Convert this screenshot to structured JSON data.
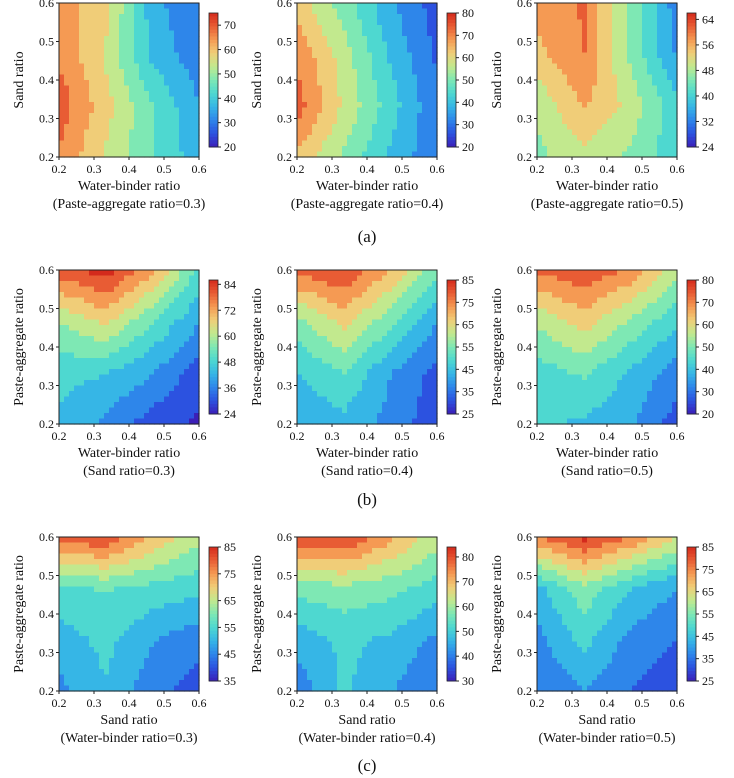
{
  "figure": {
    "row_labels": [
      "(a)",
      "(b)",
      "(c)"
    ]
  },
  "colormap": [
    "#3b1fb8",
    "#2c52e0",
    "#2e86ea",
    "#36b6e6",
    "#4ed8d0",
    "#7ee8b4",
    "#c2e98e",
    "#f0cd78",
    "#f59a53",
    "#e85c34",
    "#d42a1c"
  ],
  "chart_data": [
    {
      "type": "heatmap",
      "row": 0,
      "col": 0,
      "title": "",
      "xlabel": "Water-binder ratio",
      "ylabel": "Sand ratio",
      "subtitle": "(Paste-aggregate ratio=0.3)",
      "xlim": [
        0.2,
        0.6
      ],
      "ylim": [
        0.2,
        0.6
      ],
      "xticks": [
        "0.2",
        "0.3",
        "0.4",
        "0.5",
        "0.6"
      ],
      "yticks": [
        "0.2",
        "0.3",
        "0.4",
        "0.5",
        "0.6"
      ],
      "colorbar": {
        "min": 20,
        "max": 75,
        "ticks": [
          "20",
          "30",
          "40",
          "50",
          "60",
          "70"
        ]
      },
      "corners": [
        [
          64,
          58,
          36,
          28
        ],
        [
          66,
          55,
          38,
          30
        ],
        [
          70,
          58,
          45,
          34
        ],
        [
          66,
          55,
          45,
          36
        ]
      ]
    },
    {
      "type": "heatmap",
      "row": 0,
      "col": 1,
      "title": "",
      "xlabel": "Water-binder ratio",
      "ylabel": "Sand ratio",
      "subtitle": "(Paste-aggregate ratio=0.4)",
      "xlim": [
        0.2,
        0.6
      ],
      "ylim": [
        0.2,
        0.6
      ],
      "xticks": [
        "0.2",
        "0.3",
        "0.4",
        "0.5",
        "0.6"
      ],
      "yticks": [
        "0.2",
        "0.3",
        "0.4",
        "0.5",
        "0.6"
      ],
      "colorbar": {
        "min": 20,
        "max": 80,
        "ticks": [
          "20",
          "30",
          "40",
          "50",
          "60",
          "70",
          "80"
        ]
      },
      "corners": [
        [
          62,
          50,
          36,
          26
        ],
        [
          70,
          56,
          40,
          28
        ],
        [
          74,
          58,
          44,
          30
        ],
        [
          64,
          52,
          40,
          30
        ]
      ]
    },
    {
      "type": "heatmap",
      "row": 0,
      "col": 2,
      "title": "",
      "xlabel": "Water-binder ratio",
      "ylabel": "Sand ratio",
      "subtitle": "(Paste-aggregate ratio=0.5)",
      "xlim": [
        0.2,
        0.6
      ],
      "ylim": [
        0.2,
        0.6
      ],
      "xticks": [
        "0.2",
        "0.3",
        "0.4",
        "0.5",
        "0.6"
      ],
      "yticks": [
        "0.2",
        "0.3",
        "0.4",
        "0.5",
        "0.6"
      ],
      "colorbar": {
        "min": 24,
        "max": 66,
        "ticks": [
          "24",
          "32",
          "40",
          "48",
          "56",
          "64"
        ]
      },
      "corners": [
        [
          58,
          60,
          46,
          32
        ],
        [
          54,
          60,
          46,
          34
        ],
        [
          48,
          56,
          50,
          40
        ],
        [
          46,
          50,
          46,
          40
        ]
      ]
    },
    {
      "type": "heatmap",
      "row": 1,
      "col": 0,
      "title": "",
      "xlabel": "Water-binder ratio",
      "ylabel": "Paste-aggregate ratio",
      "subtitle": "(Sand ratio=0.3)",
      "xlim": [
        0.2,
        0.6
      ],
      "ylim": [
        0.2,
        0.6
      ],
      "xticks": [
        "0.2",
        "0.3",
        "0.4",
        "0.5",
        "0.6"
      ],
      "yticks": [
        "0.2",
        "0.3",
        "0.4",
        "0.5",
        "0.6"
      ],
      "colorbar": {
        "min": 24,
        "max": 86,
        "ticks": [
          "24",
          "36",
          "48",
          "60",
          "72",
          "84"
        ]
      },
      "corners": [
        [
          80,
          86,
          72,
          50
        ],
        [
          58,
          66,
          52,
          40
        ],
        [
          48,
          46,
          40,
          30
        ],
        [
          44,
          38,
          30,
          26
        ]
      ]
    },
    {
      "type": "heatmap",
      "row": 1,
      "col": 1,
      "title": "",
      "xlabel": "Water-binder ratio",
      "ylabel": "Paste-aggregate ratio",
      "subtitle": "(Sand ratio=0.4)",
      "xlim": [
        0.2,
        0.6
      ],
      "ylim": [
        0.2,
        0.6
      ],
      "xticks": [
        "0.2",
        "0.3",
        "0.4",
        "0.5",
        "0.6"
      ],
      "yticks": [
        "0.2",
        "0.3",
        "0.4",
        "0.5",
        "0.6"
      ],
      "colorbar": {
        "min": 25,
        "max": 85,
        "ticks": [
          "25",
          "35",
          "45",
          "55",
          "65",
          "75",
          "85"
        ]
      },
      "corners": [
        [
          78,
          82,
          70,
          54
        ],
        [
          56,
          66,
          54,
          40
        ],
        [
          46,
          52,
          40,
          32
        ],
        [
          40,
          44,
          38,
          30
        ]
      ]
    },
    {
      "type": "heatmap",
      "row": 1,
      "col": 2,
      "title": "",
      "xlabel": "Water-binder ratio",
      "ylabel": "Paste-aggregate ratio",
      "subtitle": "(Sand ratio=0.5)",
      "xlim": [
        0.2,
        0.6
      ],
      "ylim": [
        0.2,
        0.6
      ],
      "xticks": [
        "0.2",
        "0.3",
        "0.4",
        "0.5",
        "0.6"
      ],
      "yticks": [
        "0.2",
        "0.3",
        "0.4",
        "0.5",
        "0.6"
      ],
      "colorbar": {
        "min": 20,
        "max": 80,
        "ticks": [
          "20",
          "30",
          "40",
          "50",
          "60",
          "70",
          "80"
        ]
      },
      "corners": [
        [
          72,
          76,
          70,
          56
        ],
        [
          54,
          62,
          52,
          42
        ],
        [
          44,
          48,
          40,
          32
        ],
        [
          42,
          40,
          36,
          26
        ]
      ]
    },
    {
      "type": "heatmap",
      "row": 2,
      "col": 0,
      "title": "",
      "xlabel": "Sand ratio",
      "ylabel": "Paste-aggregate ratio",
      "subtitle": "(Water-binder ratio=0.3)",
      "xlim": [
        0.2,
        0.6
      ],
      "ylim": [
        0.2,
        0.6
      ],
      "xticks": [
        "0.2",
        "0.3",
        "0.4",
        "0.5",
        "0.6"
      ],
      "yticks": [
        "0.2",
        "0.3",
        "0.4",
        "0.5",
        "0.6"
      ],
      "colorbar": {
        "min": 35,
        "max": 85,
        "ticks": [
          "35",
          "45",
          "55",
          "65",
          "75",
          "85"
        ]
      },
      "corners": [
        [
          80,
          82,
          72,
          64
        ],
        [
          56,
          58,
          56,
          54
        ],
        [
          50,
          54,
          48,
          44
        ],
        [
          46,
          52,
          44,
          40
        ]
      ]
    },
    {
      "type": "heatmap",
      "row": 2,
      "col": 1,
      "title": "",
      "xlabel": "Sand ratio",
      "ylabel": "Paste-aggregate ratio",
      "subtitle": "(Water-binder ratio=0.4)",
      "xlim": [
        0.2,
        0.6
      ],
      "ylim": [
        0.2,
        0.6
      ],
      "xticks": [
        "0.2",
        "0.3",
        "0.4",
        "0.5",
        "0.6"
      ],
      "yticks": [
        "0.2",
        "0.3",
        "0.4",
        "0.5",
        "0.6"
      ],
      "colorbar": {
        "min": 30,
        "max": 84,
        "ticks": [
          "30",
          "40",
          "50",
          "60",
          "70",
          "80"
        ]
      },
      "corners": [
        [
          80,
          82,
          72,
          62
        ],
        [
          56,
          58,
          56,
          52
        ],
        [
          46,
          50,
          48,
          42
        ],
        [
          40,
          50,
          44,
          38
        ]
      ]
    },
    {
      "type": "heatmap",
      "row": 2,
      "col": 2,
      "title": "",
      "xlabel": "Sand ratio",
      "ylabel": "Paste-aggregate ratio",
      "subtitle": "(Water-binder ratio=0.5)",
      "xlim": [
        0.2,
        0.6
      ],
      "ylim": [
        0.2,
        0.6
      ],
      "xticks": [
        "0.2",
        "0.3",
        "0.4",
        "0.5",
        "0.6"
      ],
      "yticks": [
        "0.2",
        "0.3",
        "0.4",
        "0.5",
        "0.6"
      ],
      "colorbar": {
        "min": 25,
        "max": 85,
        "ticks": [
          "25",
          "35",
          "45",
          "55",
          "65",
          "75",
          "85"
        ]
      },
      "corners": [
        [
          76,
          84,
          76,
          64
        ],
        [
          44,
          56,
          46,
          40
        ],
        [
          38,
          48,
          38,
          34
        ],
        [
          34,
          40,
          34,
          30
        ]
      ]
    }
  ]
}
